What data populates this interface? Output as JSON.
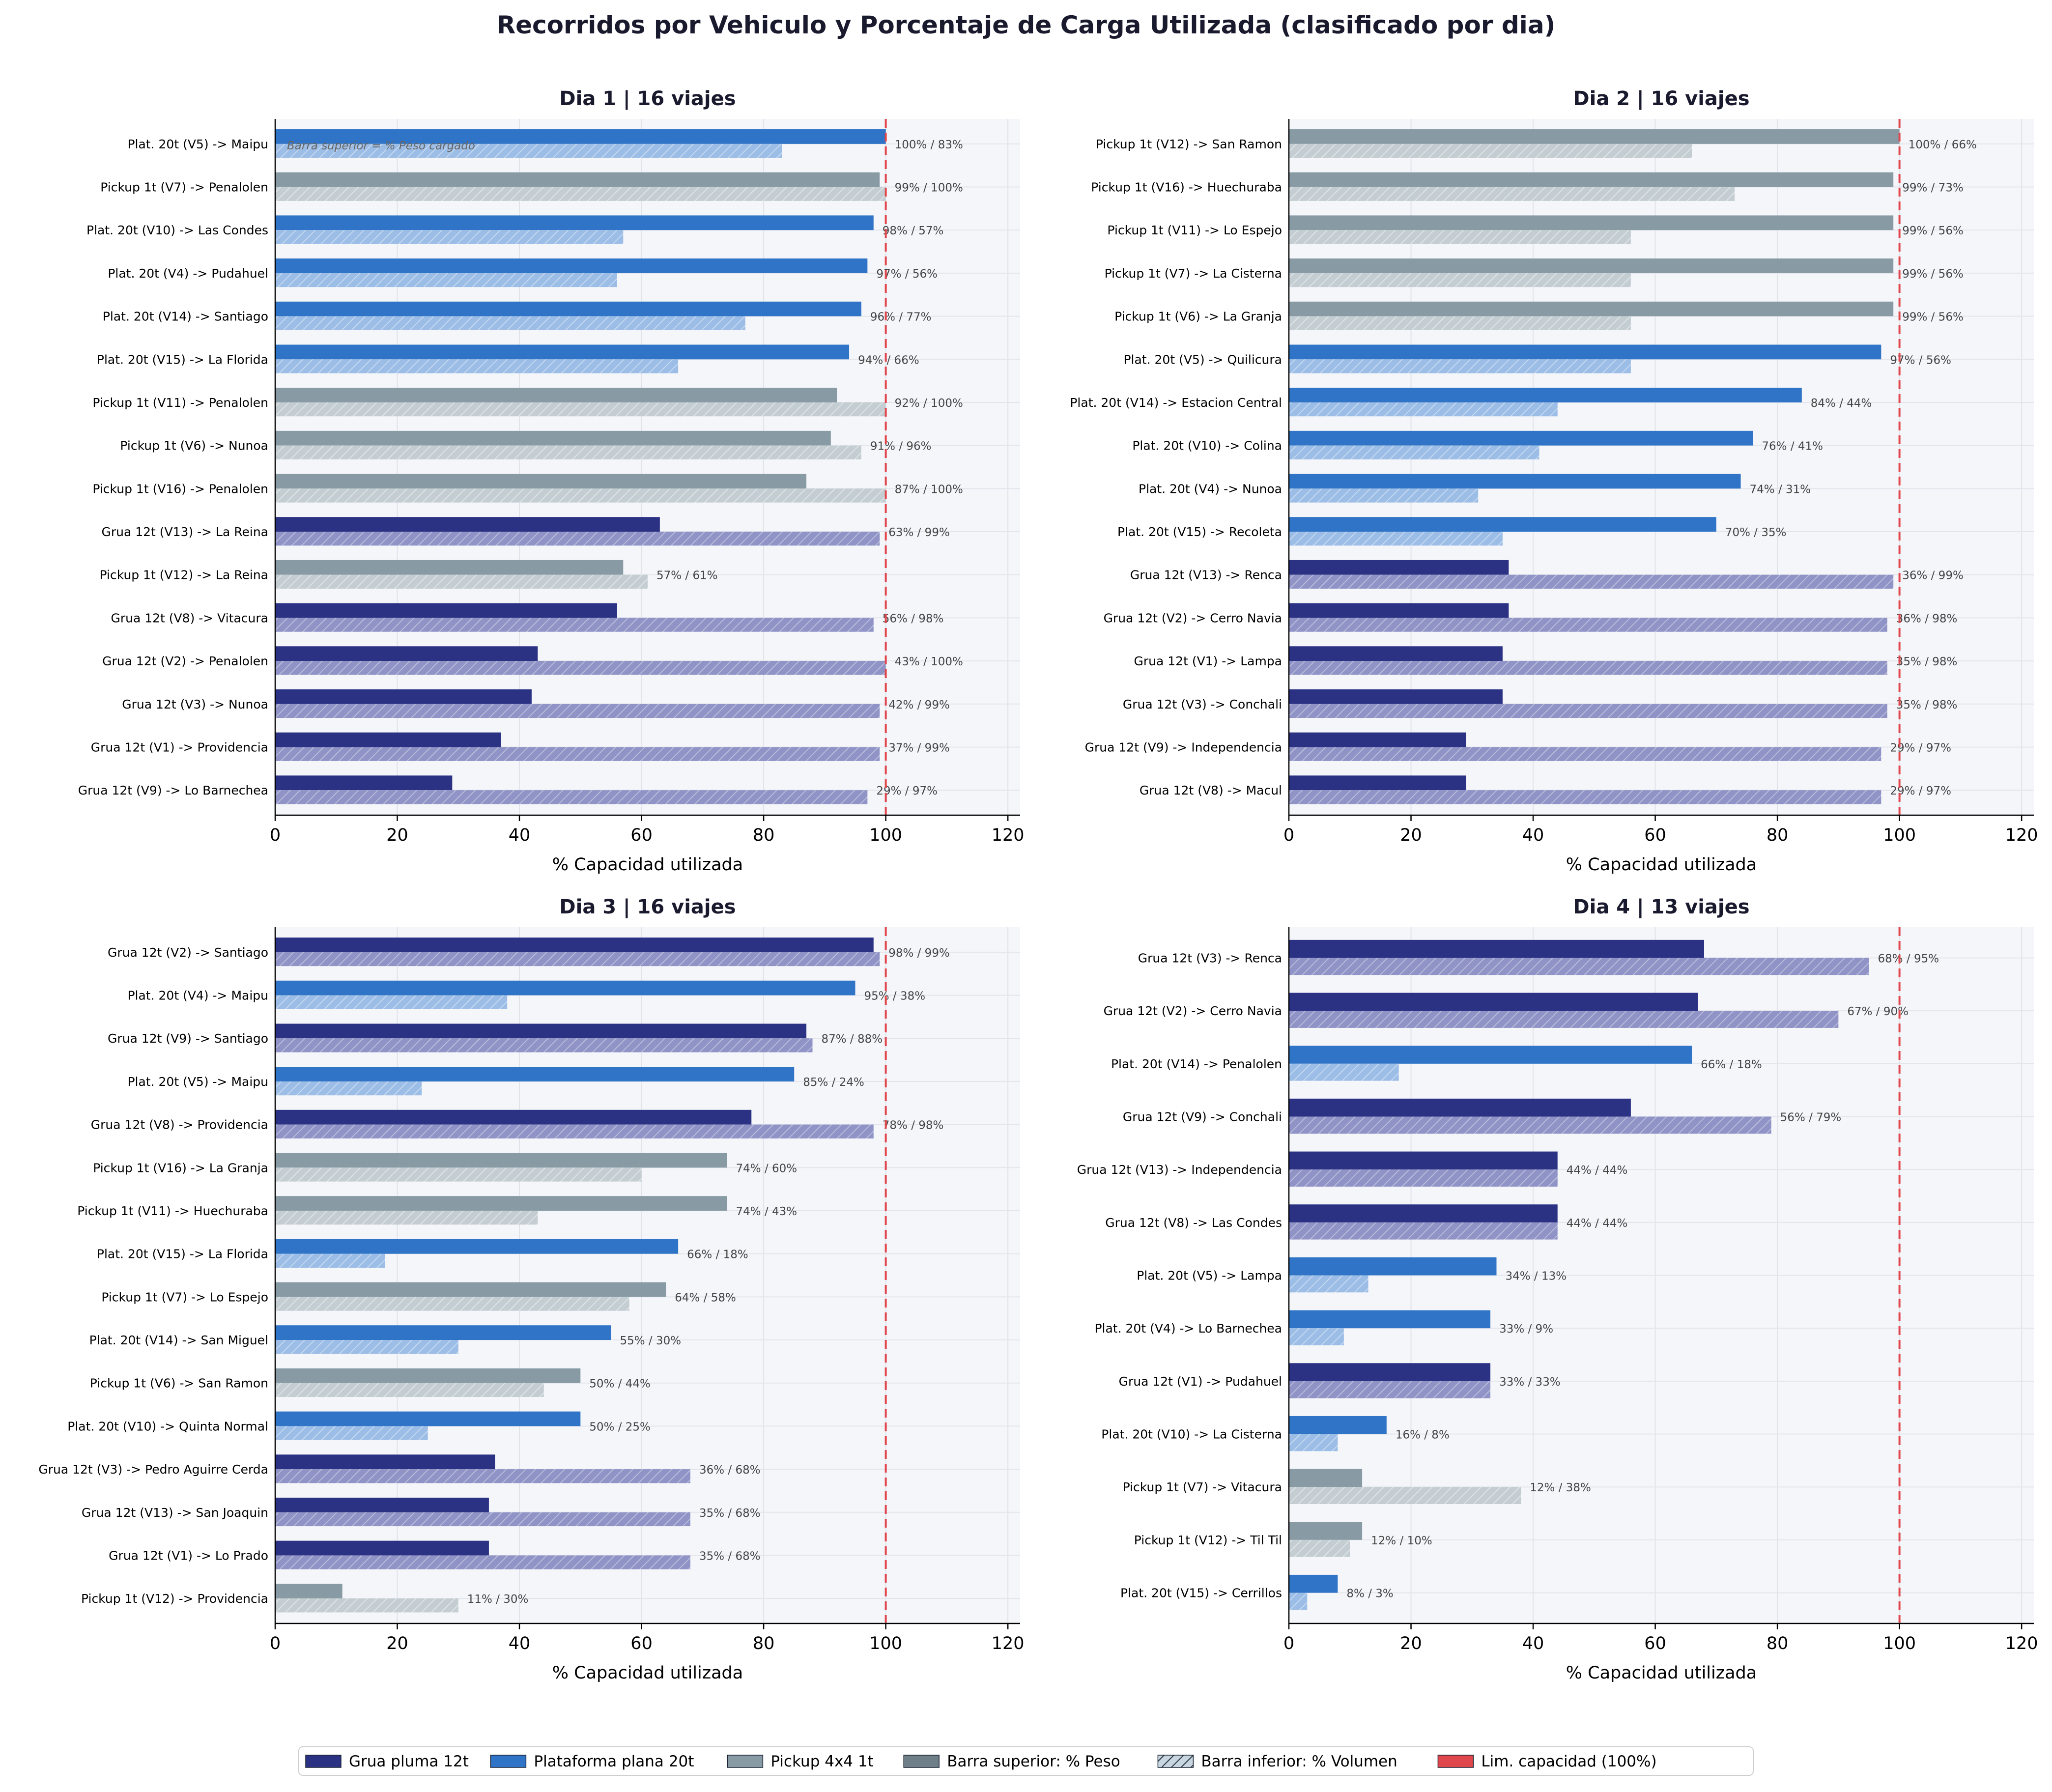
{
  "title": "Recorridos por Vehiculo y Porcentaje de Carga Utilizada (clasificado por dia)",
  "colors": {
    "grua": "#2b3183",
    "plat": "#2f74c6",
    "pickup": "#889ba4",
    "grua_light": "#8f93c5",
    "plat_light": "#9cbde6",
    "pickup_light": "#c4ced2",
    "limit": "#e0474c",
    "panel_bg": "#f5f6fa"
  },
  "legend": [
    {
      "label": "Grua pluma 12t",
      "swatch": "grua"
    },
    {
      "label": "Plataforma plana 20t",
      "swatch": "plat"
    },
    {
      "label": "Pickup 4x4 1t",
      "swatch": "pickup"
    },
    {
      "label": "Barra superior: % Peso",
      "swatch": "neutral"
    },
    {
      "label": "Barra inferior: % Volumen",
      "swatch": "hatch"
    },
    {
      "label": "Lim. capacidad (100%)",
      "swatch": "limit"
    }
  ],
  "chart_data": [
    {
      "type": "bar",
      "title": "Dia 1  |  16 viajes",
      "xlabel": "% Capacidad utilizada",
      "xlim": [
        0,
        122
      ],
      "xticks": [
        0,
        20,
        40,
        60,
        80,
        100,
        120
      ],
      "limit_line": 100,
      "note": "Barra superior = % Peso cargado",
      "series": [
        {
          "name": "% Peso"
        },
        {
          "name": "% Volumen"
        }
      ],
      "rows": [
        {
          "label": "Plat. 20t (V5)  ->  Maipu",
          "vehicle": "plat",
          "peso": 100,
          "volumen": 83,
          "value_label": "100% / 83%"
        },
        {
          "label": "Pickup 1t (V7)  ->  Penalolen",
          "vehicle": "pickup",
          "peso": 99,
          "volumen": 100,
          "value_label": "99% / 100%"
        },
        {
          "label": "Plat. 20t (V10)  ->  Las Condes",
          "vehicle": "plat",
          "peso": 98,
          "volumen": 57,
          "value_label": "98% / 57%"
        },
        {
          "label": "Plat. 20t (V4)  ->  Pudahuel",
          "vehicle": "plat",
          "peso": 97,
          "volumen": 56,
          "value_label": "97% / 56%"
        },
        {
          "label": "Plat. 20t (V14)  ->  Santiago",
          "vehicle": "plat",
          "peso": 96,
          "volumen": 77,
          "value_label": "96% / 77%"
        },
        {
          "label": "Plat. 20t (V15)  ->  La Florida",
          "vehicle": "plat",
          "peso": 94,
          "volumen": 66,
          "value_label": "94% / 66%"
        },
        {
          "label": "Pickup 1t (V11)  ->  Penalolen",
          "vehicle": "pickup",
          "peso": 92,
          "volumen": 100,
          "value_label": "92% / 100%"
        },
        {
          "label": "Pickup 1t (V6)  ->  Nunoa",
          "vehicle": "pickup",
          "peso": 91,
          "volumen": 96,
          "value_label": "91% / 96%"
        },
        {
          "label": "Pickup 1t (V16)  ->  Penalolen",
          "vehicle": "pickup",
          "peso": 87,
          "volumen": 100,
          "value_label": "87% / 100%"
        },
        {
          "label": "Grua 12t (V13)  ->  La Reina",
          "vehicle": "grua",
          "peso": 63,
          "volumen": 99,
          "value_label": "63% / 99%"
        },
        {
          "label": "Pickup 1t (V12)  ->  La Reina",
          "vehicle": "pickup",
          "peso": 57,
          "volumen": 61,
          "value_label": "57% / 61%"
        },
        {
          "label": "Grua 12t (V8)  ->  Vitacura",
          "vehicle": "grua",
          "peso": 56,
          "volumen": 98,
          "value_label": "56% / 98%"
        },
        {
          "label": "Grua 12t (V2)  ->  Penalolen",
          "vehicle": "grua",
          "peso": 43,
          "volumen": 100,
          "value_label": "43% / 100%"
        },
        {
          "label": "Grua 12t (V3)  ->  Nunoa",
          "vehicle": "grua",
          "peso": 42,
          "volumen": 99,
          "value_label": "42% / 99%"
        },
        {
          "label": "Grua 12t (V1)  ->  Providencia",
          "vehicle": "grua",
          "peso": 37,
          "volumen": 99,
          "value_label": "37% / 99%"
        },
        {
          "label": "Grua 12t (V9)  ->  Lo Barnechea",
          "vehicle": "grua",
          "peso": 29,
          "volumen": 97,
          "value_label": "29% / 97%"
        }
      ]
    },
    {
      "type": "bar",
      "title": "Dia 2  |  16 viajes",
      "xlabel": "% Capacidad utilizada",
      "xlim": [
        0,
        122
      ],
      "xticks": [
        0,
        20,
        40,
        60,
        80,
        100,
        120
      ],
      "limit_line": 100,
      "note": "",
      "series": [
        {
          "name": "% Peso"
        },
        {
          "name": "% Volumen"
        }
      ],
      "rows": [
        {
          "label": "Pickup 1t (V12)  ->  San Ramon",
          "vehicle": "pickup",
          "peso": 100,
          "volumen": 66,
          "value_label": "100% / 66%"
        },
        {
          "label": "Pickup 1t (V16)  ->  Huechuraba",
          "vehicle": "pickup",
          "peso": 99,
          "volumen": 73,
          "value_label": "99% / 73%"
        },
        {
          "label": "Pickup 1t (V11)  ->  Lo Espejo",
          "vehicle": "pickup",
          "peso": 99,
          "volumen": 56,
          "value_label": "99% / 56%"
        },
        {
          "label": "Pickup 1t (V7)  ->  La Cisterna",
          "vehicle": "pickup",
          "peso": 99,
          "volumen": 56,
          "value_label": "99% / 56%"
        },
        {
          "label": "Pickup 1t (V6)  ->  La Granja",
          "vehicle": "pickup",
          "peso": 99,
          "volumen": 56,
          "value_label": "99% / 56%"
        },
        {
          "label": "Plat. 20t (V5)  ->  Quilicura",
          "vehicle": "plat",
          "peso": 97,
          "volumen": 56,
          "value_label": "97% / 56%"
        },
        {
          "label": "Plat. 20t (V14)  ->  Estacion Central",
          "vehicle": "plat",
          "peso": 84,
          "volumen": 44,
          "value_label": "84% / 44%"
        },
        {
          "label": "Plat. 20t (V10)  ->  Colina",
          "vehicle": "plat",
          "peso": 76,
          "volumen": 41,
          "value_label": "76% / 41%"
        },
        {
          "label": "Plat. 20t (V4)  ->  Nunoa",
          "vehicle": "plat",
          "peso": 74,
          "volumen": 31,
          "value_label": "74% / 31%"
        },
        {
          "label": "Plat. 20t (V15)  ->  Recoleta",
          "vehicle": "plat",
          "peso": 70,
          "volumen": 35,
          "value_label": "70% / 35%"
        },
        {
          "label": "Grua 12t (V13)  ->  Renca",
          "vehicle": "grua",
          "peso": 36,
          "volumen": 99,
          "value_label": "36% / 99%"
        },
        {
          "label": "Grua 12t (V2)  ->  Cerro Navia",
          "vehicle": "grua",
          "peso": 36,
          "volumen": 98,
          "value_label": "36% / 98%"
        },
        {
          "label": "Grua 12t (V1)  ->  Lampa",
          "vehicle": "grua",
          "peso": 35,
          "volumen": 98,
          "value_label": "35% / 98%"
        },
        {
          "label": "Grua 12t (V3)  ->  Conchali",
          "vehicle": "grua",
          "peso": 35,
          "volumen": 98,
          "value_label": "35% / 98%"
        },
        {
          "label": "Grua 12t (V9)  ->  Independencia",
          "vehicle": "grua",
          "peso": 29,
          "volumen": 97,
          "value_label": "29% / 97%"
        },
        {
          "label": "Grua 12t (V8)  ->  Macul",
          "vehicle": "grua",
          "peso": 29,
          "volumen": 97,
          "value_label": "29% / 97%"
        }
      ]
    },
    {
      "type": "bar",
      "title": "Dia 3  |  16 viajes",
      "xlabel": "% Capacidad utilizada",
      "xlim": [
        0,
        122
      ],
      "xticks": [
        0,
        20,
        40,
        60,
        80,
        100,
        120
      ],
      "limit_line": 100,
      "note": "",
      "series": [
        {
          "name": "% Peso"
        },
        {
          "name": "% Volumen"
        }
      ],
      "rows": [
        {
          "label": "Grua 12t (V2)  ->  Santiago",
          "vehicle": "grua",
          "peso": 98,
          "volumen": 99,
          "value_label": "98% / 99%"
        },
        {
          "label": "Plat. 20t (V4)  ->  Maipu",
          "vehicle": "plat",
          "peso": 95,
          "volumen": 38,
          "value_label": "95% / 38%"
        },
        {
          "label": "Grua 12t (V9)  ->  Santiago",
          "vehicle": "grua",
          "peso": 87,
          "volumen": 88,
          "value_label": "87% / 88%"
        },
        {
          "label": "Plat. 20t (V5)  ->  Maipu",
          "vehicle": "plat",
          "peso": 85,
          "volumen": 24,
          "value_label": "85% / 24%"
        },
        {
          "label": "Grua 12t (V8)  ->  Providencia",
          "vehicle": "grua",
          "peso": 78,
          "volumen": 98,
          "value_label": "78% / 98%"
        },
        {
          "label": "Pickup 1t (V16)  ->  La Granja",
          "vehicle": "pickup",
          "peso": 74,
          "volumen": 60,
          "value_label": "74% / 60%"
        },
        {
          "label": "Pickup 1t (V11)  ->  Huechuraba",
          "vehicle": "pickup",
          "peso": 74,
          "volumen": 43,
          "value_label": "74% / 43%"
        },
        {
          "label": "Plat. 20t (V15)  ->  La Florida",
          "vehicle": "plat",
          "peso": 66,
          "volumen": 18,
          "value_label": "66% / 18%"
        },
        {
          "label": "Pickup 1t (V7)  ->  Lo Espejo",
          "vehicle": "pickup",
          "peso": 64,
          "volumen": 58,
          "value_label": "64% / 58%"
        },
        {
          "label": "Plat. 20t (V14)  ->  San Miguel",
          "vehicle": "plat",
          "peso": 55,
          "volumen": 30,
          "value_label": "55% / 30%"
        },
        {
          "label": "Pickup 1t (V6)  ->  San Ramon",
          "vehicle": "pickup",
          "peso": 50,
          "volumen": 44,
          "value_label": "50% / 44%"
        },
        {
          "label": "Plat. 20t (V10)  ->  Quinta Normal",
          "vehicle": "plat",
          "peso": 50,
          "volumen": 25,
          "value_label": "50% / 25%"
        },
        {
          "label": "Grua 12t (V3)  ->  Pedro Aguirre Cerda",
          "vehicle": "grua",
          "peso": 36,
          "volumen": 68,
          "value_label": "36% / 68%"
        },
        {
          "label": "Grua 12t (V13)  ->  San Joaquin",
          "vehicle": "grua",
          "peso": 35,
          "volumen": 68,
          "value_label": "35% / 68%"
        },
        {
          "label": "Grua 12t (V1)  ->  Lo Prado",
          "vehicle": "grua",
          "peso": 35,
          "volumen": 68,
          "value_label": "35% / 68%"
        },
        {
          "label": "Pickup 1t (V12)  ->  Providencia",
          "vehicle": "pickup",
          "peso": 11,
          "volumen": 30,
          "value_label": "11% / 30%"
        }
      ]
    },
    {
      "type": "bar",
      "title": "Dia 4  |  13 viajes",
      "xlabel": "% Capacidad utilizada",
      "xlim": [
        0,
        122
      ],
      "xticks": [
        0,
        20,
        40,
        60,
        80,
        100,
        120
      ],
      "limit_line": 100,
      "note": "",
      "series": [
        {
          "name": "% Peso"
        },
        {
          "name": "% Volumen"
        }
      ],
      "rows": [
        {
          "label": "Grua 12t (V3)  ->  Renca",
          "vehicle": "grua",
          "peso": 68,
          "volumen": 95,
          "value_label": "68% / 95%"
        },
        {
          "label": "Grua 12t (V2)  ->  Cerro Navia",
          "vehicle": "grua",
          "peso": 67,
          "volumen": 90,
          "value_label": "67% / 90%"
        },
        {
          "label": "Plat. 20t (V14)  ->  Penalolen",
          "vehicle": "plat",
          "peso": 66,
          "volumen": 18,
          "value_label": "66% / 18%"
        },
        {
          "label": "Grua 12t (V9)  ->  Conchali",
          "vehicle": "grua",
          "peso": 56,
          "volumen": 79,
          "value_label": "56% / 79%"
        },
        {
          "label": "Grua 12t (V13)  ->  Independencia",
          "vehicle": "grua",
          "peso": 44,
          "volumen": 44,
          "value_label": "44% / 44%"
        },
        {
          "label": "Grua 12t (V8)  ->  Las Condes",
          "vehicle": "grua",
          "peso": 44,
          "volumen": 44,
          "value_label": "44% / 44%"
        },
        {
          "label": "Plat. 20t (V5)  ->  Lampa",
          "vehicle": "plat",
          "peso": 34,
          "volumen": 13,
          "value_label": "34% / 13%"
        },
        {
          "label": "Plat. 20t (V4)  ->  Lo Barnechea",
          "vehicle": "plat",
          "peso": 33,
          "volumen": 9,
          "value_label": "33% / 9%"
        },
        {
          "label": "Grua 12t (V1)  ->  Pudahuel",
          "vehicle": "grua",
          "peso": 33,
          "volumen": 33,
          "value_label": "33% / 33%"
        },
        {
          "label": "Plat. 20t (V10)  ->  La Cisterna",
          "vehicle": "plat",
          "peso": 16,
          "volumen": 8,
          "value_label": "16% / 8%"
        },
        {
          "label": "Pickup 1t (V7)  ->  Vitacura",
          "vehicle": "pickup",
          "peso": 12,
          "volumen": 38,
          "value_label": "12% / 38%"
        },
        {
          "label": "Pickup 1t (V12)  ->  Til Til",
          "vehicle": "pickup",
          "peso": 12,
          "volumen": 10,
          "value_label": "12% / 10%"
        },
        {
          "label": "Plat. 20t (V15)  ->  Cerrillos",
          "vehicle": "plat",
          "peso": 8,
          "volumen": 3,
          "value_label": "8% / 3%"
        }
      ]
    }
  ]
}
